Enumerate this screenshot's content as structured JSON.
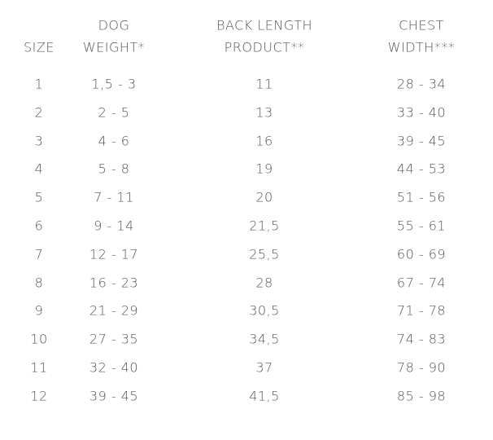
{
  "headers": [
    {
      "line1": "",
      "line2": "SIZE"
    },
    {
      "line1": "DOG",
      "line2": "WEIGHT*"
    },
    {
      "line1": "BACK LENGTH",
      "line2": "PRODUCT**"
    },
    {
      "line1": "CHEST",
      "line2": "WIDTH***"
    }
  ],
  "rows": [
    [
      "1",
      "1,5 - 3",
      "11",
      "28 - 34"
    ],
    [
      "2",
      "2 - 5",
      "13",
      "33 - 40"
    ],
    [
      "3",
      "4 - 6",
      "16",
      "39 - 45"
    ],
    [
      "4",
      "5 - 8",
      "19",
      "44 - 53"
    ],
    [
      "5",
      "7 - 11",
      "20",
      "51 - 56"
    ],
    [
      "6",
      "9 - 14",
      "21,5",
      "55 - 61"
    ],
    [
      "7",
      "12 - 17",
      "25,5",
      "60 - 69"
    ],
    [
      "8",
      "16 - 23",
      "28",
      "67 - 74"
    ],
    [
      "9",
      "21 - 29",
      "30,5",
      "71 - 78"
    ],
    [
      "10",
      "27 - 35",
      "34,5",
      "74 - 83"
    ],
    [
      "11",
      "32 - 40",
      "37",
      "78 - 90"
    ],
    [
      "12",
      "39 - 45",
      "41,5",
      "85 - 98"
    ]
  ]
}
